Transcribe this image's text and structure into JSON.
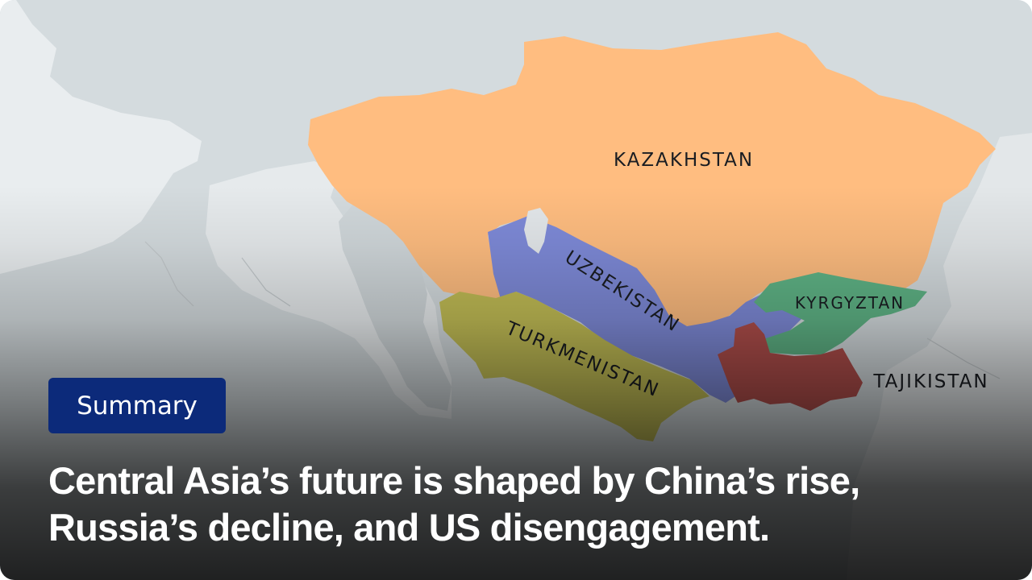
{
  "map": {
    "countries": [
      {
        "name": "KAZAKHSTAN",
        "color": "#ffbd80"
      },
      {
        "name": "UZBEKISTAN",
        "color": "#7e8ad8"
      },
      {
        "name": "TURKMENISTAN",
        "color": "#c2bd55"
      },
      {
        "name": "KYRGYZTAN",
        "color": "#5fb486"
      },
      {
        "name": "TAJIKISTAN",
        "color": "#b04e4b"
      }
    ],
    "water_color": "#d4dbde",
    "land_color": "#e8ecee"
  },
  "badge": {
    "label": "Summary",
    "color": "#0c2a7a"
  },
  "headline": {
    "line1": "Central Asia’s future is shaped by China’s rise,",
    "line2": "Russia’s decline, and US disengagement."
  }
}
